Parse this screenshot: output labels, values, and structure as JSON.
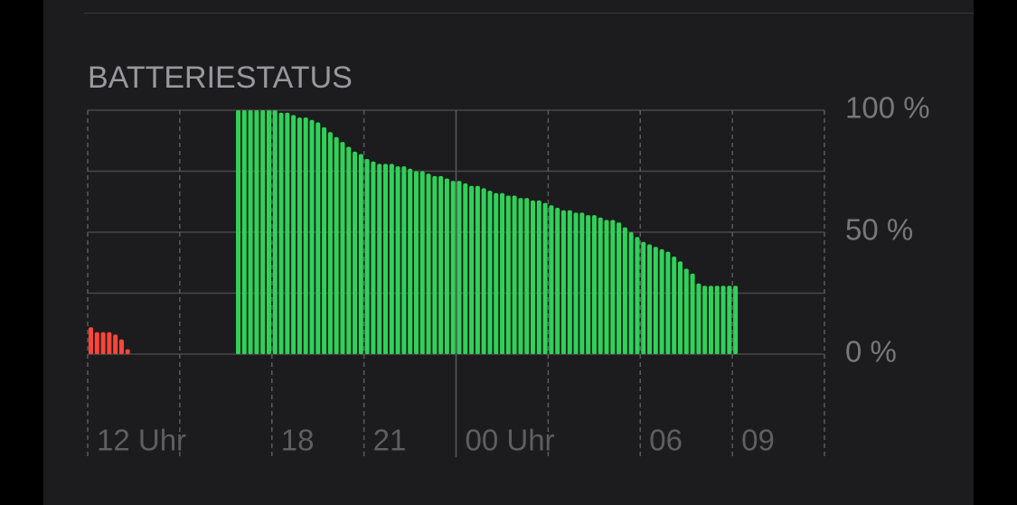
{
  "chart_data": {
    "type": "bar",
    "title": "BATTERIESTATUS",
    "series": [
      {
        "color": "#ff453a",
        "x": [
          0,
          0.2,
          0.4,
          0.6,
          0.8,
          1,
          1.2
        ],
        "values": [
          11,
          9,
          9,
          9,
          8,
          6,
          2
        ]
      },
      {
        "color": "#30d158",
        "x": [
          4.8,
          5,
          5.2,
          5.4,
          5.6,
          5.8,
          6,
          6.2,
          6.4,
          6.6,
          6.8,
          7,
          7.2,
          7.4,
          7.6,
          7.8,
          8,
          8.2,
          8.4,
          8.6,
          8.8,
          9,
          9.2,
          9.4,
          9.6,
          9.8,
          10,
          10.2,
          10.4,
          10.6,
          10.8,
          11,
          11.2,
          11.4,
          11.6,
          11.8,
          12,
          12.2,
          12.4,
          12.6,
          12.8,
          13,
          13.2,
          13.4,
          13.6,
          13.8,
          14,
          14.2,
          14.4,
          14.6,
          14.8,
          15,
          15.2,
          15.4,
          15.6,
          15.8,
          16,
          16.2,
          16.4,
          16.6,
          16.8,
          17,
          17.2,
          17.4,
          17.6,
          17.8,
          18,
          18.2,
          18.4,
          18.6,
          18.8,
          19,
          19.2,
          19.4,
          19.6,
          19.8,
          20,
          20.2,
          20.4,
          20.6,
          20.8,
          21
        ],
        "values": [
          100,
          100,
          100,
          100,
          100,
          100,
          100,
          99,
          99,
          98,
          97,
          97,
          96,
          95,
          93,
          91,
          89,
          87,
          85,
          83,
          82,
          80,
          79,
          78,
          78,
          78,
          77,
          77,
          76,
          75,
          75,
          74,
          73,
          73,
          72,
          71,
          71,
          70,
          69,
          69,
          68,
          67,
          66,
          66,
          65,
          65,
          64,
          64,
          63,
          63,
          62,
          61,
          60,
          59,
          59,
          58,
          58,
          57,
          57,
          56,
          55,
          55,
          54,
          52,
          50,
          48,
          46,
          45,
          44,
          43,
          42,
          40,
          38,
          35,
          33,
          29,
          28,
          28,
          28,
          28,
          28,
          28
        ]
      }
    ],
    "xlim": [
      0,
      24
    ],
    "xticks": [
      {
        "value": 0,
        "label": "12 Uhr"
      },
      {
        "value": 3,
        "label": null
      },
      {
        "value": 6,
        "label": "18"
      },
      {
        "value": 9,
        "label": "21"
      },
      {
        "value": 12,
        "label": "00 Uhr"
      },
      {
        "value": 15,
        "label": null
      },
      {
        "value": 18,
        "label": "06"
      },
      {
        "value": 21,
        "label": "09"
      },
      {
        "value": 24,
        "label": null
      }
    ],
    "xgrid_solid_at": 12,
    "ylim": [
      0,
      100
    ],
    "yticks": [
      {
        "value": 0,
        "label": "0 %"
      },
      {
        "value": 25,
        "label": null
      },
      {
        "value": 50,
        "label": "50 %"
      },
      {
        "value": 75,
        "label": null
      },
      {
        "value": 100,
        "label": "100 %"
      }
    ],
    "grid": true
  }
}
